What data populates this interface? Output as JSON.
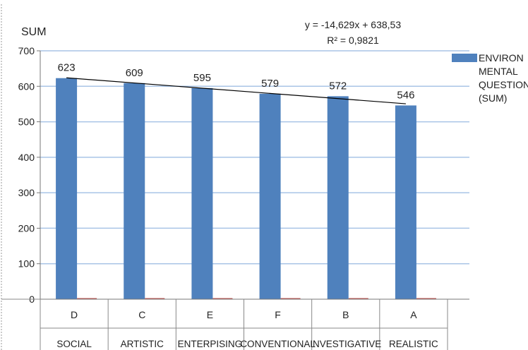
{
  "chart_data": {
    "type": "bar",
    "ylabel": "SUM",
    "ylim": [
      0,
      700
    ],
    "yticks": [
      0,
      100,
      200,
      300,
      400,
      500,
      600,
      700
    ],
    "grid": true,
    "legend_position": "right",
    "categories": [
      {
        "code": "D",
        "label": "SOCIAL"
      },
      {
        "code": "C",
        "label": "ARTISTIC"
      },
      {
        "code": "E",
        "label": "ENTERPISING"
      },
      {
        "code": "F",
        "label": "CONVENTIONAL"
      },
      {
        "code": "B",
        "label": "INVESTIGATIVE"
      },
      {
        "code": "A",
        "label": "REALISTIC"
      }
    ],
    "series": [
      {
        "name": "ENVIRONMENTAL QUESTION (SUM)",
        "legend_lines": [
          "ENVIRON",
          "MENTAL",
          "QUESTION",
          "(SUM)"
        ],
        "color": "#4F81BD",
        "values": [
          623,
          609,
          595,
          579,
          572,
          546
        ]
      },
      {
        "name": "",
        "color": "#C0504D",
        "values": [
          3,
          3,
          3,
          3,
          3,
          3
        ]
      }
    ],
    "data_labels": [
      "623",
      "609",
      "595",
      "579",
      "572",
      "546"
    ],
    "trendline": {
      "type": "linear",
      "slope": -14.629,
      "intercept": 638.53,
      "equation_text": "y = -14,629x + 638,53",
      "r2_text": "R² = 0,9821",
      "color": "#000000"
    }
  }
}
